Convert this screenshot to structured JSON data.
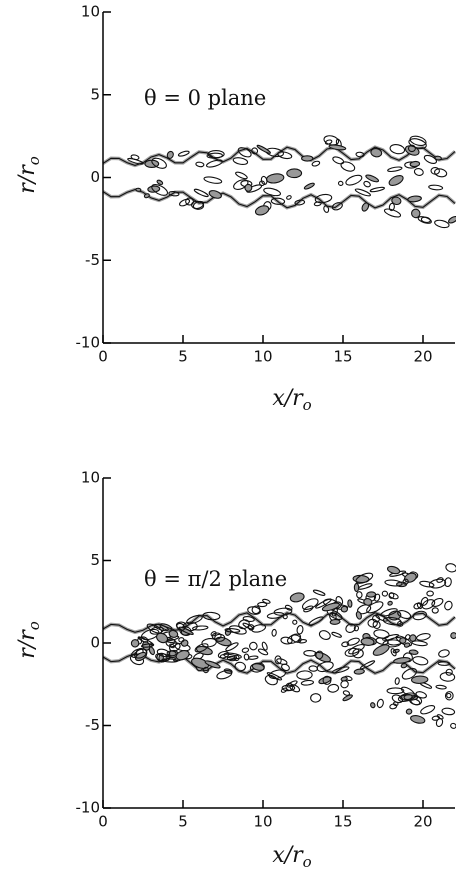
{
  "chart_data": [
    {
      "type": "contour",
      "annotation": "θ = 0 plane",
      "xlabel": {
        "text": "x/r",
        "subscript": "o"
      },
      "ylabel": {
        "text": "r/r",
        "subscript": "o"
      },
      "xlim": [
        0,
        22
      ],
      "ylim": [
        -10,
        10
      ],
      "xticks": [
        0,
        5,
        10,
        15,
        20
      ],
      "yticks": [
        -10,
        -5,
        0,
        5,
        10
      ]
    },
    {
      "type": "contour",
      "annotation": "θ = π/2 plane",
      "xlabel": {
        "text": "x/r",
        "subscript": "o"
      },
      "ylabel": {
        "text": "r/r",
        "subscript": "o"
      },
      "xlim": [
        0,
        22
      ],
      "ylim": [
        -10,
        10
      ],
      "xticks": [
        0,
        5,
        10,
        15,
        20
      ],
      "yticks": [
        -10,
        -5,
        0,
        5,
        10
      ]
    }
  ]
}
